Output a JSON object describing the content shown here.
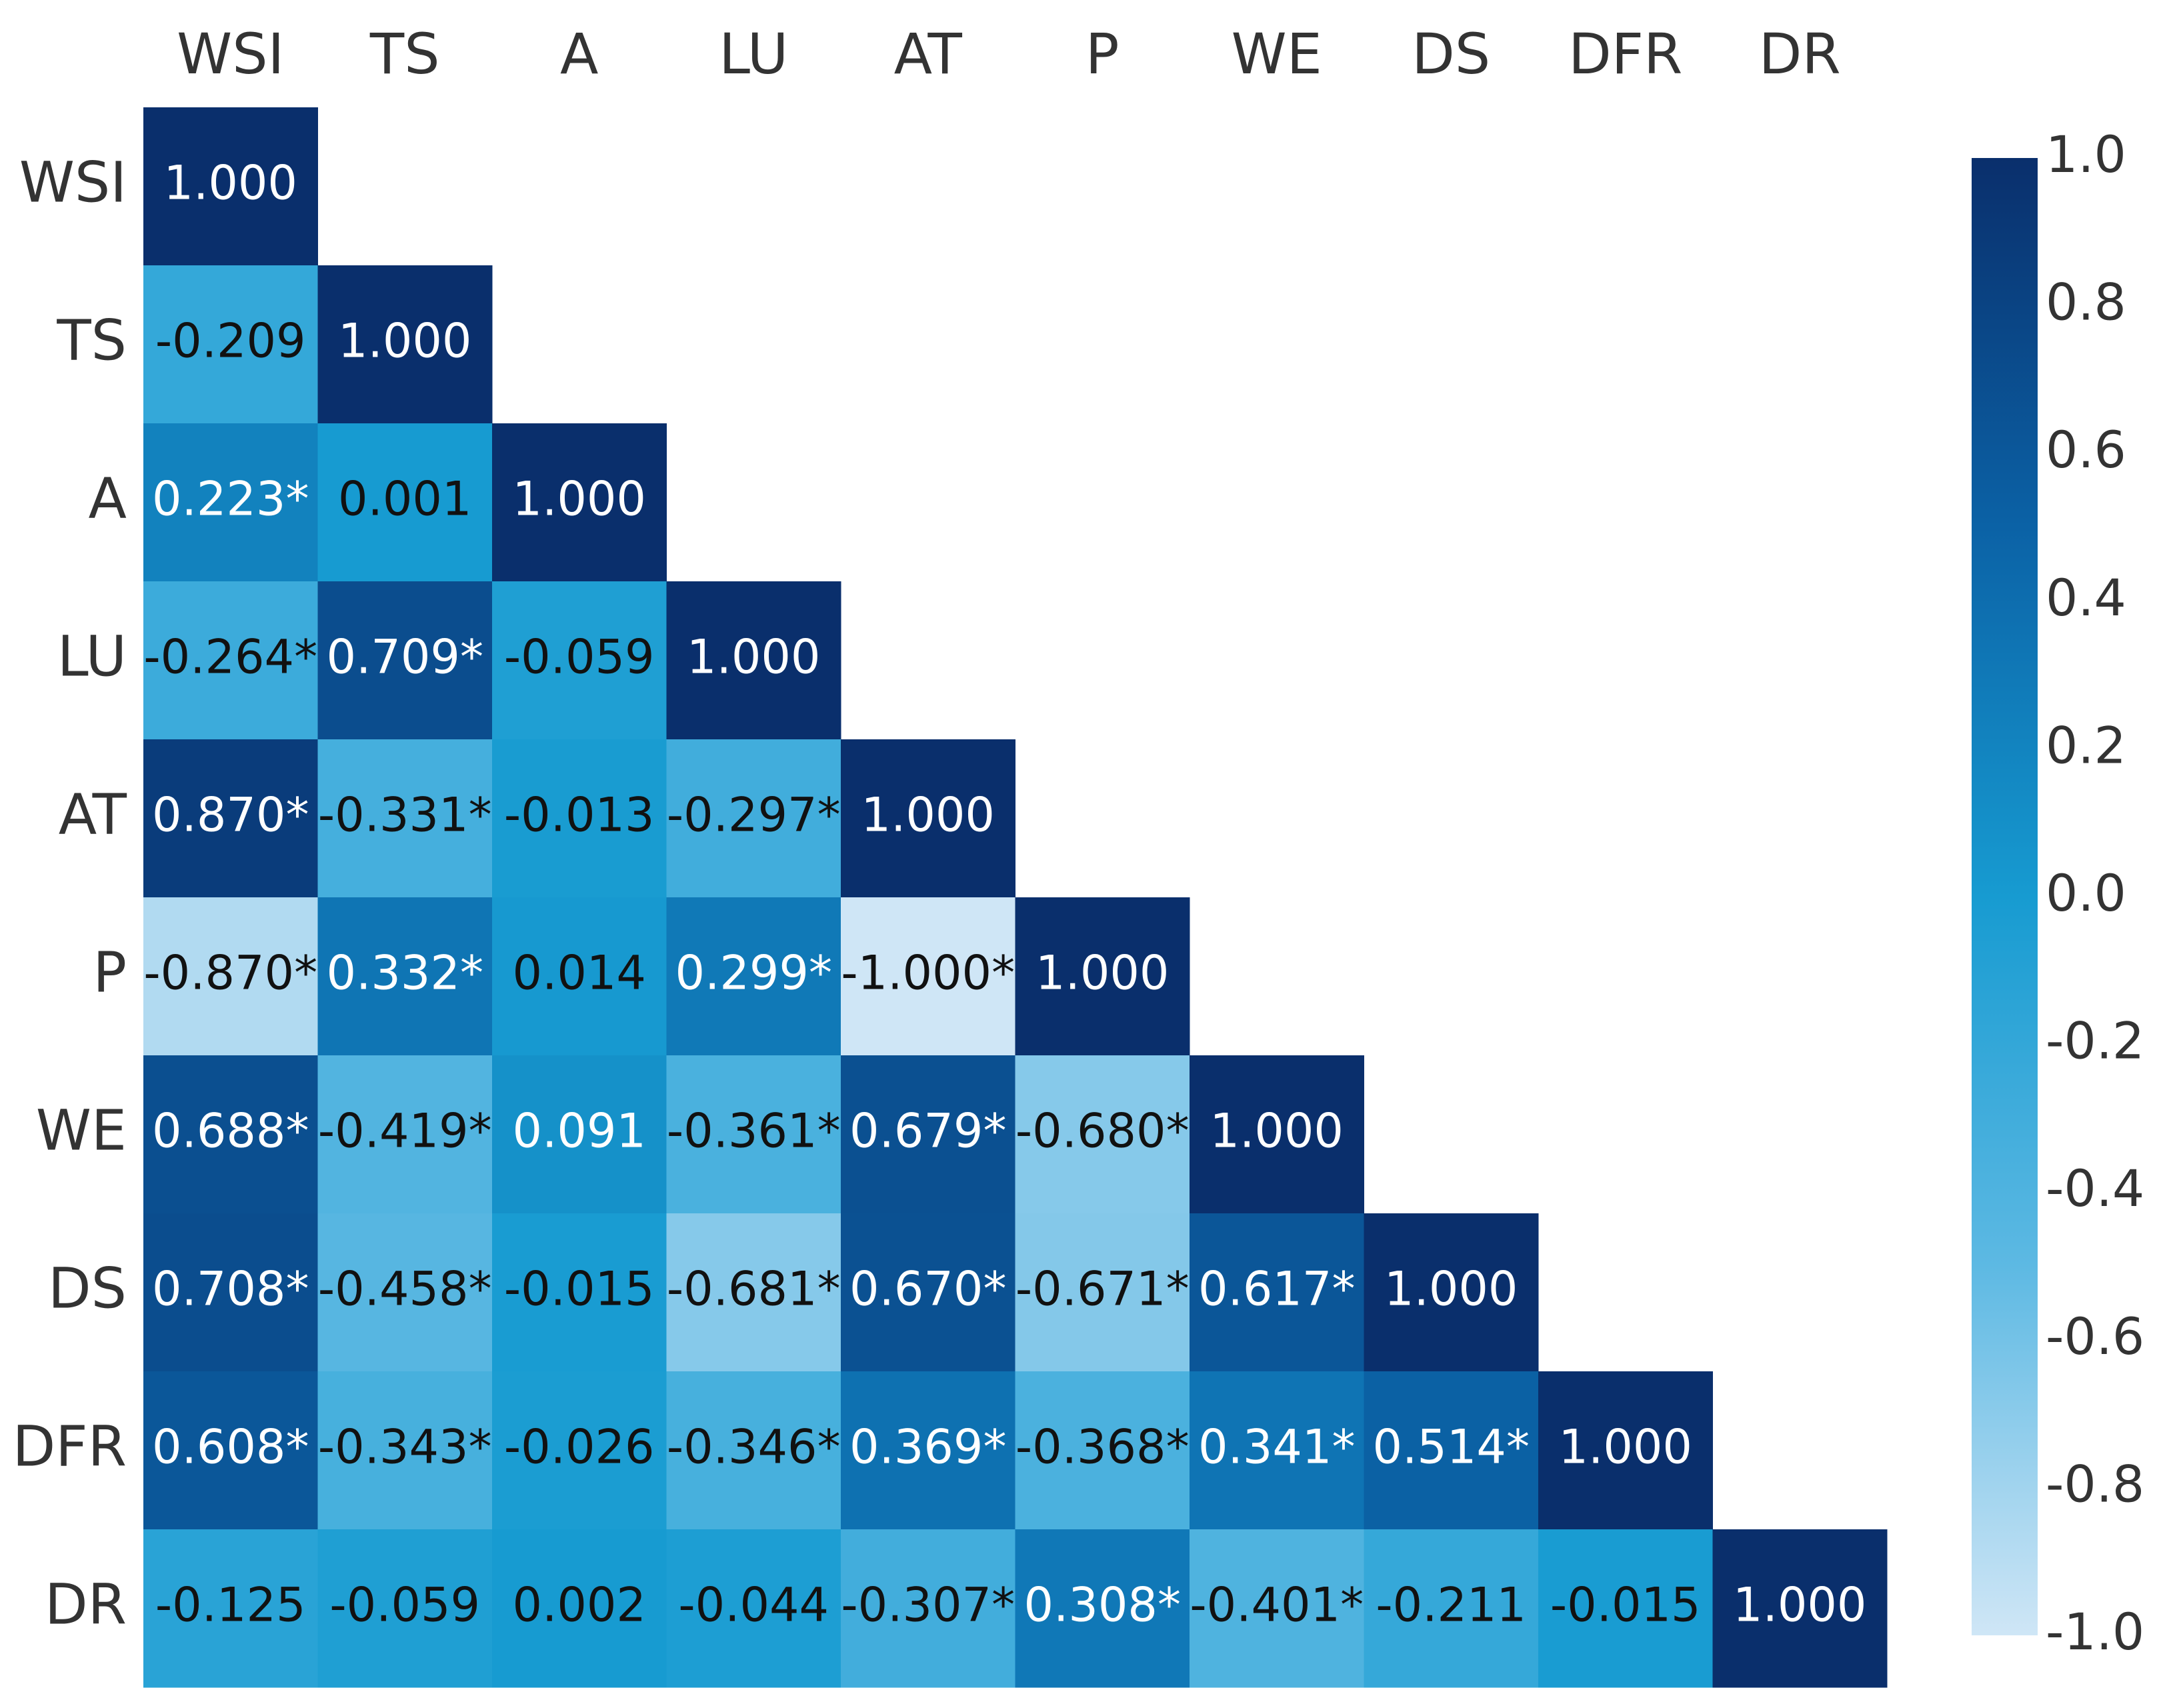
{
  "chart_data": {
    "type": "heatmap",
    "x_categories": [
      "WSI",
      "TS",
      "A",
      "LU",
      "AT",
      "P",
      "WE",
      "DS",
      "DFR",
      "DR"
    ],
    "y_categories": [
      "WSI",
      "TS",
      "A",
      "LU",
      "AT",
      "P",
      "WE",
      "DS",
      "DFR",
      "DR"
    ],
    "values": [
      [
        1.0,
        null,
        null,
        null,
        null,
        null,
        null,
        null,
        null,
        null
      ],
      [
        -0.209,
        1.0,
        null,
        null,
        null,
        null,
        null,
        null,
        null,
        null
      ],
      [
        0.223,
        0.001,
        1.0,
        null,
        null,
        null,
        null,
        null,
        null,
        null
      ],
      [
        -0.264,
        0.709,
        -0.059,
        1.0,
        null,
        null,
        null,
        null,
        null,
        null
      ],
      [
        0.87,
        -0.331,
        -0.013,
        -0.297,
        1.0,
        null,
        null,
        null,
        null,
        null
      ],
      [
        -0.87,
        0.332,
        0.014,
        0.299,
        -1.0,
        1.0,
        null,
        null,
        null,
        null
      ],
      [
        0.688,
        -0.419,
        0.091,
        -0.361,
        0.679,
        -0.68,
        1.0,
        null,
        null,
        null
      ],
      [
        0.708,
        -0.458,
        -0.015,
        -0.681,
        0.67,
        -0.671,
        0.617,
        1.0,
        null,
        null
      ],
      [
        0.608,
        -0.343,
        -0.026,
        -0.346,
        0.369,
        -0.368,
        0.341,
        0.514,
        1.0,
        null
      ],
      [
        -0.125,
        -0.059,
        0.002,
        -0.044,
        -0.307,
        0.308,
        -0.401,
        -0.211,
        -0.015,
        1.0
      ]
    ],
    "value_labels": [
      [
        "1.000",
        null,
        null,
        null,
        null,
        null,
        null,
        null,
        null,
        null
      ],
      [
        "-0.209",
        "1.000",
        null,
        null,
        null,
        null,
        null,
        null,
        null,
        null
      ],
      [
        "0.223*",
        "0.001",
        "1.000",
        null,
        null,
        null,
        null,
        null,
        null,
        null
      ],
      [
        "-0.264*",
        "0.709*",
        "-0.059",
        "1.000",
        null,
        null,
        null,
        null,
        null,
        null
      ],
      [
        "0.870*",
        "-0.331*",
        "-0.013",
        "-0.297*",
        "1.000",
        null,
        null,
        null,
        null,
        null
      ],
      [
        "-0.870*",
        "0.332*",
        "0.014",
        "0.299*",
        "-1.000*",
        "1.000",
        null,
        null,
        null,
        null
      ],
      [
        "0.688*",
        "-0.419*",
        "0.091",
        "-0.361*",
        "0.679*",
        "-0.680*",
        "1.000",
        null,
        null,
        null
      ],
      [
        "0.708*",
        "-0.458*",
        "-0.015",
        "-0.681*",
        "0.670*",
        "-0.671*",
        "0.617*",
        "1.000",
        null,
        null
      ],
      [
        "0.608*",
        "-0.343*",
        "-0.026",
        "-0.346*",
        "0.369*",
        "-0.368*",
        "0.341*",
        "0.514*",
        "1.000",
        null
      ],
      [
        "-0.125",
        "-0.059",
        "0.002",
        "-0.044",
        "-0.307*",
        "0.308*",
        "-0.401*",
        "-0.211",
        "-0.015",
        "1.000"
      ]
    ],
    "clim": [
      -1.0,
      1.0
    ],
    "cticks": [
      {
        "value": -1.0,
        "label": "-1.0"
      },
      {
        "value": -0.8,
        "label": "-0.8"
      },
      {
        "value": -0.6,
        "label": "-0.6"
      },
      {
        "value": -0.4,
        "label": "-0.4"
      },
      {
        "value": -0.2,
        "label": "-0.2"
      },
      {
        "value": 0.0,
        "label": "0.0"
      },
      {
        "value": 0.2,
        "label": "0.2"
      },
      {
        "value": 0.4,
        "label": "0.4"
      },
      {
        "value": 0.6,
        "label": "0.6"
      },
      {
        "value": 0.8,
        "label": "0.8"
      },
      {
        "value": 1.0,
        "label": "1.0"
      }
    ],
    "colormap": [
      "#cfe6f6",
      "#5db9e3",
      "#179bd1",
      "#0b62a6",
      "#0a2f6c"
    ]
  }
}
